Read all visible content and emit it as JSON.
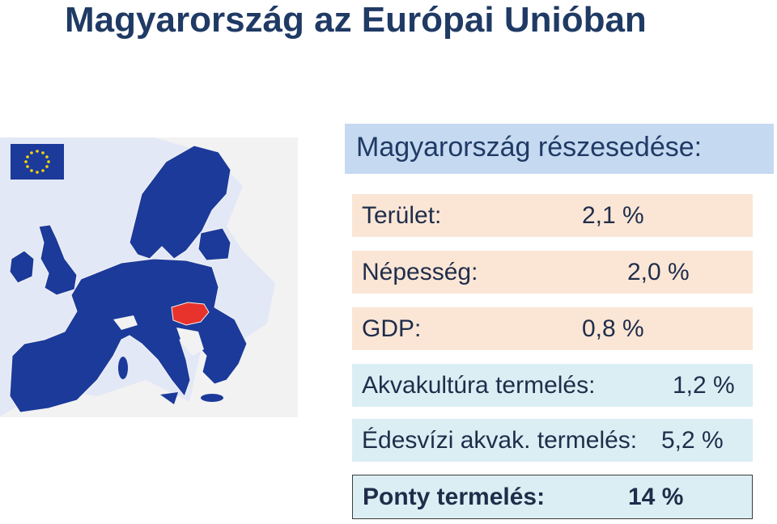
{
  "title": "Magyarország az Európai Unióban",
  "subtitle": "Magyarország  részesedése:",
  "rows": [
    {
      "label": "Terület:",
      "value": "2,1 %"
    },
    {
      "label": "Népesség:",
      "value": "2,0 %"
    },
    {
      "label": "GDP:",
      "value": "0,8 %"
    },
    {
      "label": "Akvakultúra termelés:",
      "value": "1,2 %"
    },
    {
      "label": "Édesvízi akvak. termelés:",
      "value": "5,2 %"
    },
    {
      "label": "Ponty termelés:",
      "value": "14 %"
    }
  ],
  "map": {
    "icon": "eu-map",
    "flag_icon": "eu-flag-icon",
    "colors": {
      "eu": "#1b3a9a",
      "hungary": "#e8322c",
      "land": "#f2f2f2",
      "sea": "#e3e8f6"
    }
  }
}
